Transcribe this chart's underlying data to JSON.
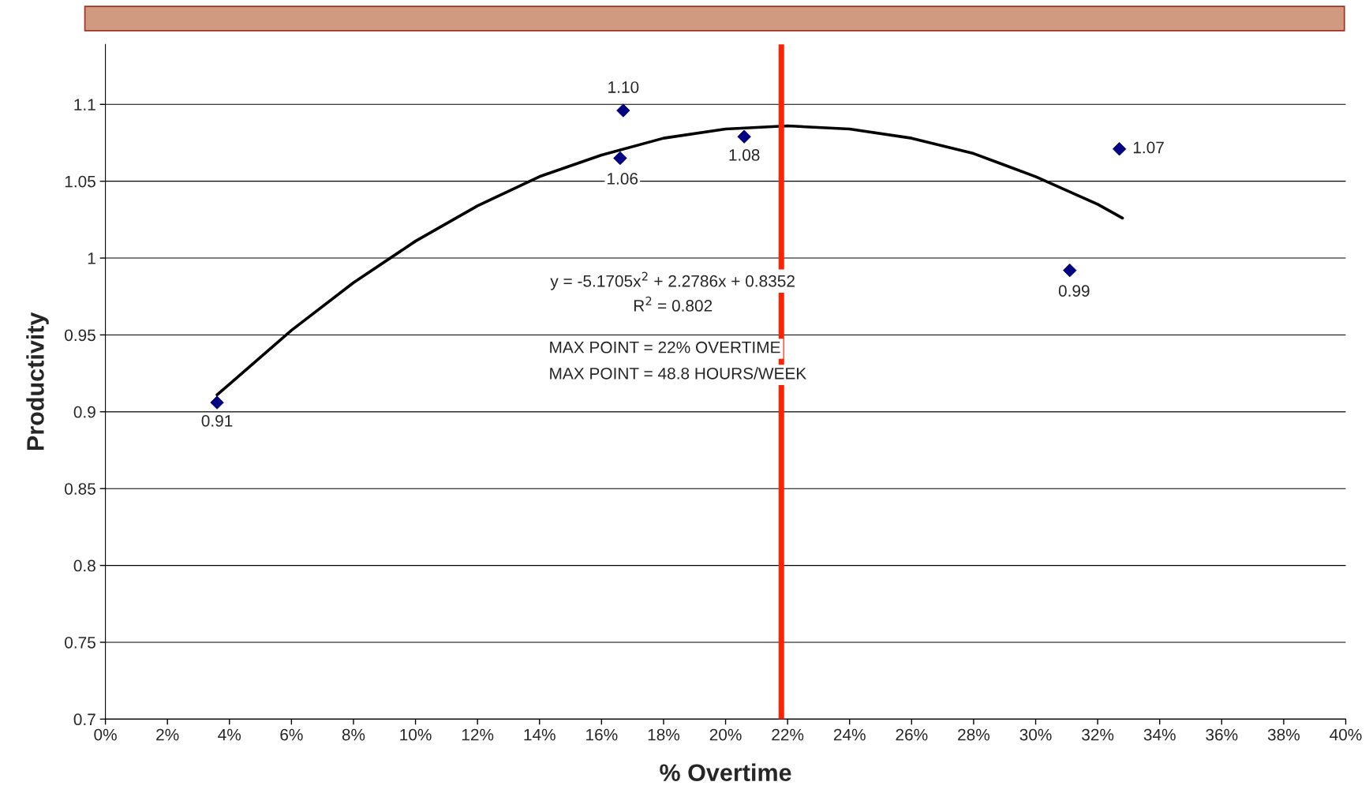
{
  "chart_data": {
    "type": "scatter",
    "xlabel": "% Overtime",
    "ylabel": "Productivity",
    "xlim": [
      0,
      40
    ],
    "ylim": [
      0.7,
      1.139
    ],
    "xticks": [
      {
        "value": 0,
        "label": "0%"
      },
      {
        "value": 2,
        "label": "2%"
      },
      {
        "value": 4,
        "label": "4%"
      },
      {
        "value": 6,
        "label": "6%"
      },
      {
        "value": 8,
        "label": "8%"
      },
      {
        "value": 10,
        "label": "10%"
      },
      {
        "value": 12,
        "label": "12%"
      },
      {
        "value": 14,
        "label": "14%"
      },
      {
        "value": 16,
        "label": "16%"
      },
      {
        "value": 18,
        "label": "18%"
      },
      {
        "value": 20,
        "label": "20%"
      },
      {
        "value": 22,
        "label": "22%"
      },
      {
        "value": 24,
        "label": "24%"
      },
      {
        "value": 26,
        "label": "26%"
      },
      {
        "value": 28,
        "label": "28%"
      },
      {
        "value": 30,
        "label": "30%"
      },
      {
        "value": 32,
        "label": "32%"
      },
      {
        "value": 34,
        "label": "34%"
      },
      {
        "value": 36,
        "label": "36%"
      },
      {
        "value": 38,
        "label": "38%"
      },
      {
        "value": 40,
        "label": "40%"
      }
    ],
    "yticks": [
      0.7,
      0.75,
      0.8,
      0.85,
      0.9,
      0.95,
      1,
      1.05,
      1.1
    ],
    "grid": "y",
    "legend": false,
    "series": [
      {
        "color": "#000080",
        "marker": "diamond",
        "x": [
          3.6,
          16.7,
          16.6,
          20.6,
          31.1,
          32.7
        ],
        "values": [
          0.906,
          1.096,
          1.065,
          1.079,
          0.992,
          1.071
        ],
        "value_labels": [
          "0.91",
          "1.10",
          "1.06",
          "1.08",
          "0.99",
          "1.07"
        ]
      },
      {
        "type": "line",
        "color": "#000000",
        "marker": "none",
        "line_style": "solid",
        "x": [
          3.6,
          4,
          6,
          8,
          10,
          12,
          14,
          16,
          18,
          20,
          22,
          24,
          26,
          28,
          30,
          32,
          32.8
        ],
        "values": [
          0.911,
          0.918,
          0.953,
          0.984,
          1.011,
          1.034,
          1.053,
          1.067,
          1.078,
          1.084,
          1.086,
          1.084,
          1.078,
          1.068,
          1.053,
          1.035,
          1.026
        ]
      }
    ],
    "ref_lines": [
      {
        "axis": "x",
        "value": 21.8,
        "color": "#ff2200",
        "line_style": "solid"
      }
    ],
    "annotations": [
      "y = -5.1705x$^{2}$ + 2.2786x + 0.8352",
      "R$^{2}$ = 0.802",
      "MAX POINT = 22% OVERTIME",
      "MAX POINT = 48.8 HOURS/WEEK"
    ]
  }
}
